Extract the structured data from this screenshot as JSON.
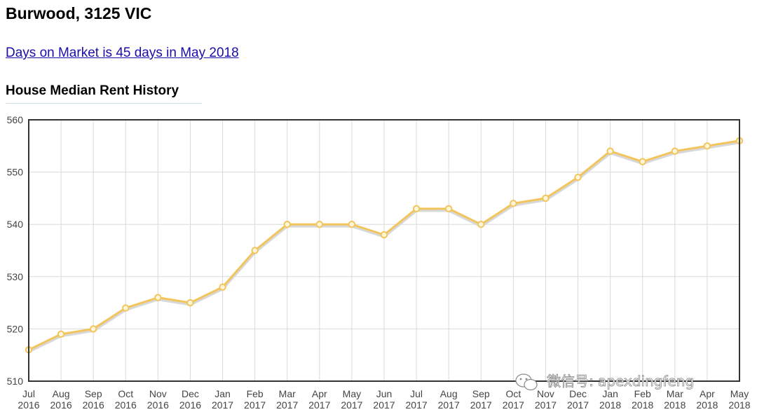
{
  "page": {
    "suburb_title": "Burwood, 3125 VIC",
    "days_on_market_link": "Days on Market is 45 days in May 2018",
    "section_title": "House Median Rent History"
  },
  "watermark": {
    "icon": "wechat-icon",
    "text": "微信号: apexdingfeng"
  },
  "chart_data": {
    "type": "line",
    "title": "",
    "xlabel": "",
    "ylabel": "",
    "ylim": [
      510,
      560
    ],
    "yticks": [
      510,
      520,
      530,
      540,
      550,
      560
    ],
    "grid": true,
    "categories": [
      [
        "Jul",
        "2016"
      ],
      [
        "Aug",
        "2016"
      ],
      [
        "Sep",
        "2016"
      ],
      [
        "Oct",
        "2016"
      ],
      [
        "Nov",
        "2016"
      ],
      [
        "Dec",
        "2016"
      ],
      [
        "Jan",
        "2017"
      ],
      [
        "Feb",
        "2017"
      ],
      [
        "Mar",
        "2017"
      ],
      [
        "Apr",
        "2017"
      ],
      [
        "May",
        "2017"
      ],
      [
        "Jun",
        "2017"
      ],
      [
        "Jul",
        "2017"
      ],
      [
        "Aug",
        "2017"
      ],
      [
        "Sep",
        "2017"
      ],
      [
        "Oct",
        "2017"
      ],
      [
        "Nov",
        "2017"
      ],
      [
        "Dec",
        "2017"
      ],
      [
        "Jan",
        "2018"
      ],
      [
        "Feb",
        "2018"
      ],
      [
        "Mar",
        "2018"
      ],
      [
        "Apr",
        "2018"
      ],
      [
        "May",
        "2018"
      ]
    ],
    "series": [
      {
        "values": [
          516,
          519,
          520,
          524,
          526,
          525,
          528,
          535,
          540,
          540,
          540,
          538,
          543,
          543,
          540,
          544,
          545,
          549,
          554,
          552,
          554,
          555,
          556
        ]
      }
    ],
    "colors": {
      "line": "#f2c55c",
      "marker_fill": "#fff6d9",
      "frame": "#333333",
      "grid": "#d9d9d9"
    }
  }
}
